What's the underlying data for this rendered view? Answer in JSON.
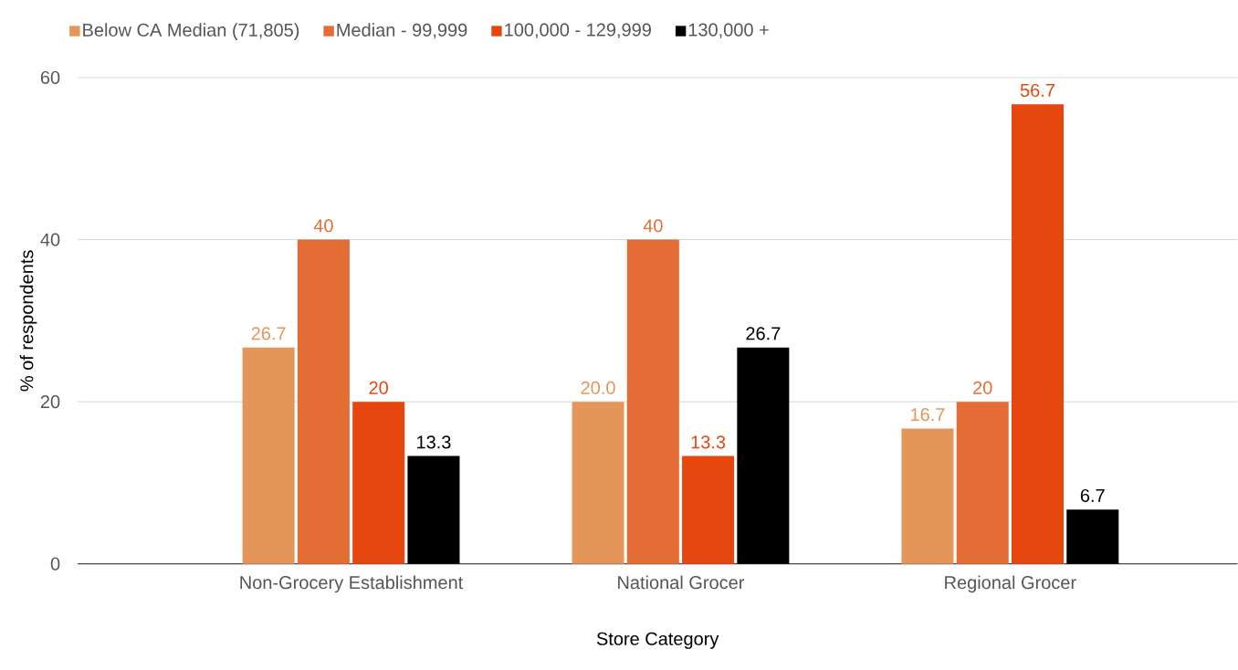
{
  "chart_data": {
    "type": "bar",
    "categories": [
      "Non-Grocery Establishment",
      "National Grocer",
      "Regional Grocer"
    ],
    "series": [
      {
        "name": "Below CA Median (71,805)",
        "color": "#e3955a",
        "values": [
          26.7,
          20.0,
          16.7
        ],
        "value_labels": [
          "26.7",
          "20.0",
          "16.7"
        ]
      },
      {
        "name": "Median - 99,999",
        "color": "#e46c35",
        "values": [
          40,
          40,
          20
        ],
        "value_labels": [
          "40",
          "40",
          "20"
        ]
      },
      {
        "name": "100,000 - 129,999",
        "color": "#e5470f",
        "values": [
          20,
          13.3,
          56.7
        ],
        "value_labels": [
          "20",
          "13.3",
          "56.7"
        ]
      },
      {
        "name": "130,000 +",
        "color": "#000000",
        "values": [
          13.3,
          26.7,
          6.7
        ],
        "value_labels": [
          "13.3",
          "26.7",
          "6.7"
        ]
      }
    ],
    "xlabel": "Store Category",
    "ylabel": "% of respondents",
    "ylim": [
      0,
      60
    ],
    "yticks": [
      0,
      20,
      40,
      60
    ],
    "grid": "y",
    "legend": "top"
  }
}
